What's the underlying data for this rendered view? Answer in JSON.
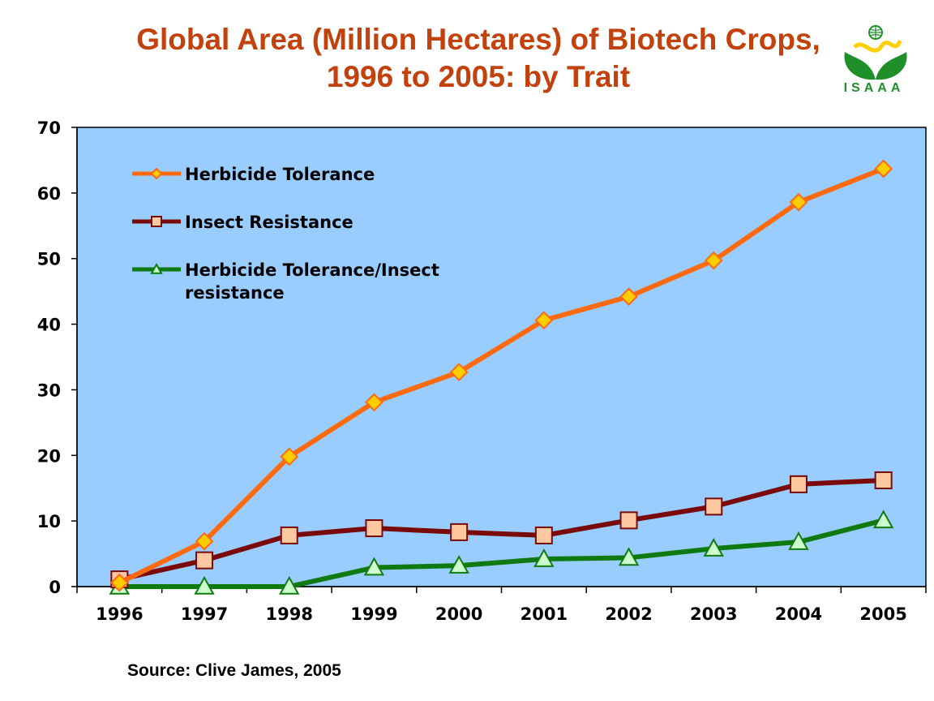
{
  "header": {
    "title_line1": "Global Area (Million Hectares) of Biotech Crops,",
    "title_line2": "1996 to 2005: by Trait",
    "logo_text": "ISAAA"
  },
  "footer": {
    "source": "Source: Clive James, 2005"
  },
  "colors": {
    "plot_background": "#99ccff",
    "title": "#c2410c",
    "herbicide_tolerance": "#ff6a0e",
    "insect_resistance": "#7a0a0a",
    "ht_ir": "#0f7a0f",
    "diamond_fill": "#ffcc00",
    "square_fill": "#ffc8a0",
    "triangle_fill": "#ccffcc"
  },
  "chart_data": {
    "type": "line",
    "title": "Global Area (Million Hectares) of Biotech Crops, 1996 to 2005: by Trait",
    "xlabel": "",
    "ylabel": "",
    "categories": [
      "1996",
      "1997",
      "1998",
      "1999",
      "2000",
      "2001",
      "2002",
      "2003",
      "2004",
      "2005"
    ],
    "ylim": [
      0,
      70
    ],
    "yticks": [
      0,
      10,
      20,
      30,
      40,
      50,
      60,
      70
    ],
    "grid": false,
    "legend_position": "top-left",
    "series": [
      {
        "name": "Herbicide Tolerance",
        "marker": "diamond",
        "color": "#ff6a0e",
        "marker_fill": "#ffcc00",
        "values": [
          0.6,
          6.9,
          19.8,
          28.1,
          32.7,
          40.6,
          44.2,
          49.7,
          58.6,
          63.7
        ]
      },
      {
        "name": "Insect Resistance",
        "marker": "square",
        "color": "#7a0a0a",
        "marker_fill": "#ffc8a0",
        "values": [
          1.1,
          4.0,
          7.8,
          8.9,
          8.3,
          7.8,
          10.1,
          12.2,
          15.6,
          16.2
        ]
      },
      {
        "name_line1": "Herbicide Tolerance/Insect",
        "name_line2": "resistance",
        "marker": "triangle",
        "color": "#0f7a0f",
        "marker_fill": "#ccffcc",
        "values": [
          0.0,
          0.0,
          0.0,
          2.9,
          3.2,
          4.2,
          4.4,
          5.8,
          6.8,
          10.1
        ]
      }
    ]
  }
}
